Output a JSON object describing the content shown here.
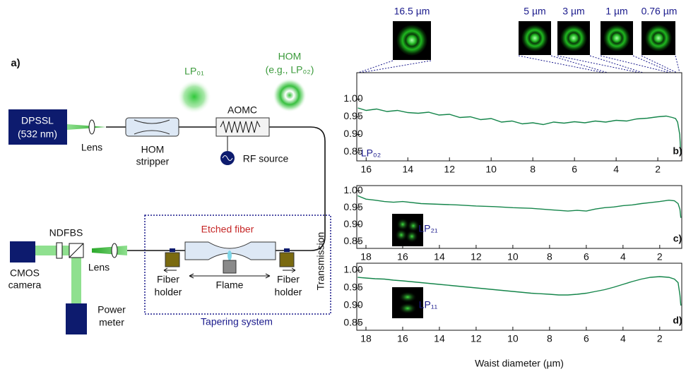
{
  "diagram": {
    "panel_label": "a)",
    "laser": [
      "DPSSL",
      "(532 nm)"
    ],
    "lens_1": "Lens",
    "stripper": [
      "HOM",
      "stripper"
    ],
    "aomc": "AOMC",
    "rf_source": "RF source",
    "mode_fundamental": "LP₀₁",
    "mode_higher": [
      "HOM",
      "(e.g., LP₀₂)"
    ],
    "camera": [
      "CMOS",
      "camera"
    ],
    "ndf": "NDF",
    "bs": "BS",
    "lens_2": "Lens",
    "power_meter": [
      "Power",
      "meter"
    ],
    "etched_fiber": "Etched fiber",
    "holder_left": [
      "Fiber",
      "holder"
    ],
    "flame": "Flame",
    "holder_right": [
      "Fiber",
      "holder"
    ],
    "tapering_system": "Tapering system"
  },
  "mode_images": [
    "16.5 µm",
    "5 µm",
    "3 µm",
    "1 µm",
    "0.76 µm"
  ],
  "shared_axes": {
    "y_label": "Transmission",
    "x_label": "Waist diameter (µm)"
  },
  "chart_data": [
    {
      "type": "line",
      "panel": "b)",
      "annotation": "LP₀₂",
      "xlim": [
        16.45,
        0.85
      ],
      "xticks": [
        16,
        14,
        12,
        10,
        8,
        6,
        4,
        2
      ],
      "ylim": [
        0.825,
        1.075
      ],
      "yticks": [
        {
          "value": 1,
          "label": "1.00"
        },
        {
          "value": 0.95,
          "label": "0.95"
        },
        {
          "value": 0.9,
          "label": "0.90"
        },
        {
          "value": 0.85,
          "label": "0.85"
        }
      ],
      "x": [
        16.4,
        16.0,
        15.5,
        15.0,
        14.5,
        14.0,
        13.5,
        13.0,
        12.5,
        12.0,
        11.5,
        11.0,
        10.5,
        10.0,
        9.5,
        9.0,
        8.5,
        8.0,
        7.5,
        7.0,
        6.5,
        6.0,
        5.5,
        5.0,
        4.5,
        4.0,
        3.5,
        3.0,
        2.5,
        2.0,
        1.6,
        1.3,
        1.15,
        1.05,
        0.95,
        0.9
      ],
      "series": [
        {
          "name": "LP₀₂",
          "color": "#14854a",
          "values": [
            0.975,
            0.968,
            0.972,
            0.965,
            0.968,
            0.962,
            0.96,
            0.963,
            0.955,
            0.957,
            0.948,
            0.95,
            0.942,
            0.945,
            0.935,
            0.938,
            0.93,
            0.933,
            0.928,
            0.935,
            0.932,
            0.936,
            0.933,
            0.938,
            0.935,
            0.94,
            0.938,
            0.944,
            0.946,
            0.95,
            0.952,
            0.948,
            0.945,
            0.935,
            0.9,
            0.85
          ]
        }
      ]
    },
    {
      "type": "line",
      "panel": "c)",
      "annotation": "LP₂₁",
      "xlim": [
        18.5,
        0.8
      ],
      "xticks": [
        18,
        16,
        14,
        12,
        10,
        8,
        6,
        4,
        2
      ],
      "ylim": [
        0.83,
        1.015
      ],
      "yticks": [
        {
          "value": 1,
          "label": "1.00"
        },
        {
          "value": 0.95,
          "label": "0.95"
        },
        {
          "value": 0.9,
          "label": "0.90"
        },
        {
          "value": 0.85,
          "label": "0.85"
        }
      ],
      "x": [
        18.45,
        18.0,
        17.5,
        17.0,
        16.5,
        16.0,
        15.0,
        14.0,
        13.0,
        12.0,
        11.0,
        10.0,
        9.0,
        8.0,
        7.0,
        6.5,
        6.0,
        5.5,
        5.0,
        4.5,
        4.0,
        3.5,
        3.0,
        2.5,
        2.0,
        1.5,
        1.2,
        1.0,
        0.9,
        0.85
      ],
      "series": [
        {
          "name": "LP₂₁",
          "color": "#14854a",
          "values": [
            0.985,
            0.975,
            0.972,
            0.968,
            0.966,
            0.968,
            0.962,
            0.96,
            0.958,
            0.955,
            0.953,
            0.95,
            0.948,
            0.944,
            0.94,
            0.942,
            0.94,
            0.946,
            0.95,
            0.952,
            0.956,
            0.958,
            0.962,
            0.965,
            0.968,
            0.972,
            0.97,
            0.962,
            0.945,
            0.92
          ]
        }
      ]
    },
    {
      "type": "line",
      "panel": "d)",
      "annotation": "LP₁₁",
      "xlim": [
        18.5,
        0.8
      ],
      "xticks": [
        18,
        16,
        14,
        12,
        10,
        8,
        6,
        4,
        2
      ],
      "ylim": [
        0.83,
        1.02
      ],
      "yticks": [
        {
          "value": 1,
          "label": "1.00"
        },
        {
          "value": 0.95,
          "label": "0.95"
        },
        {
          "value": 0.9,
          "label": "0.90"
        },
        {
          "value": 0.85,
          "label": "0.85"
        }
      ],
      "x": [
        18.45,
        18.0,
        17.5,
        17.0,
        16.5,
        16.0,
        15.0,
        14.0,
        13.0,
        12.0,
        11.0,
        10.0,
        9.0,
        8.0,
        7.5,
        7.0,
        6.5,
        6.0,
        5.5,
        5.0,
        4.5,
        4.0,
        3.5,
        3.0,
        2.5,
        2.0,
        1.5,
        1.2,
        1.0,
        0.9,
        0.85
      ],
      "series": [
        {
          "name": "LP₁₁",
          "color": "#14854a",
          "values": [
            0.98,
            0.978,
            0.976,
            0.975,
            0.972,
            0.97,
            0.965,
            0.96,
            0.955,
            0.95,
            0.945,
            0.94,
            0.935,
            0.932,
            0.93,
            0.93,
            0.932,
            0.935,
            0.94,
            0.945,
            0.952,
            0.96,
            0.968,
            0.975,
            0.98,
            0.982,
            0.98,
            0.975,
            0.965,
            0.93,
            0.9
          ]
        }
      ]
    }
  ]
}
